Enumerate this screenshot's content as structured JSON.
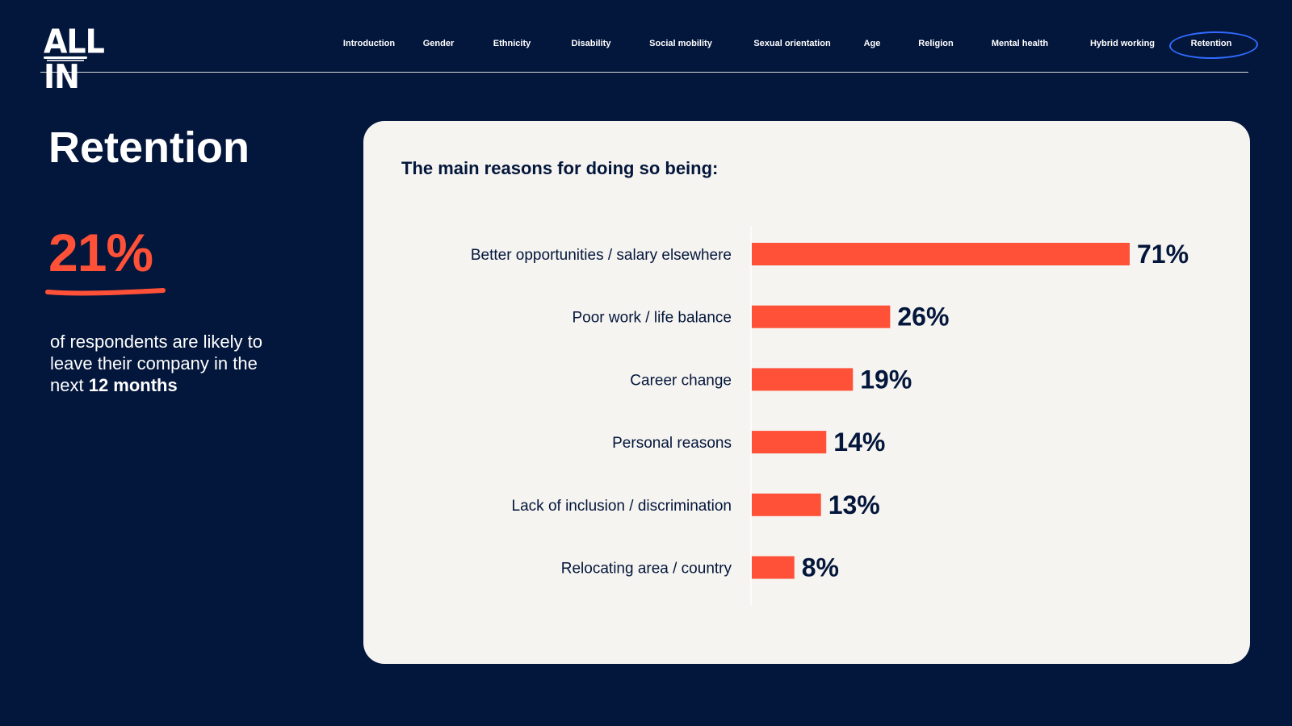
{
  "brand": {
    "logo": "ALL IN"
  },
  "nav": {
    "items": [
      {
        "label": "Introduction"
      },
      {
        "label": "Gender"
      },
      {
        "label": "Ethnicity"
      },
      {
        "label": "Disability"
      },
      {
        "label": "Social mobility"
      },
      {
        "label": "Sexual orientation"
      },
      {
        "label": "Age"
      },
      {
        "label": "Religion"
      },
      {
        "label": "Mental health"
      },
      {
        "label": "Hybrid working"
      },
      {
        "label": "Retention"
      }
    ],
    "active": "Retention"
  },
  "page": {
    "title": "Retention",
    "stat": "21%",
    "stat_desc_prefix": "of respondents are likely to leave their company in the next ",
    "stat_desc_bold": "12 months"
  },
  "colors": {
    "background": "#03163b",
    "accent": "#ff5038",
    "card": "#f6f4f0",
    "active_ring": "#2f6bff"
  },
  "chart_data": {
    "type": "bar",
    "orientation": "horizontal",
    "title": "The main reasons for doing so being:",
    "categories": [
      "Better opportunities / salary elsewhere",
      "Poor work / life balance",
      "Career change",
      "Personal reasons",
      "Lack of inclusion / discrimination",
      "Relocating area / country"
    ],
    "values": [
      71,
      26,
      19,
      14,
      13,
      8
    ],
    "data_labels": [
      "71%",
      "26%",
      "19%",
      "14%",
      "13%",
      "8%"
    ],
    "unit": "%",
    "xlim": [
      0,
      71
    ],
    "grid": false,
    "legend": "none"
  }
}
